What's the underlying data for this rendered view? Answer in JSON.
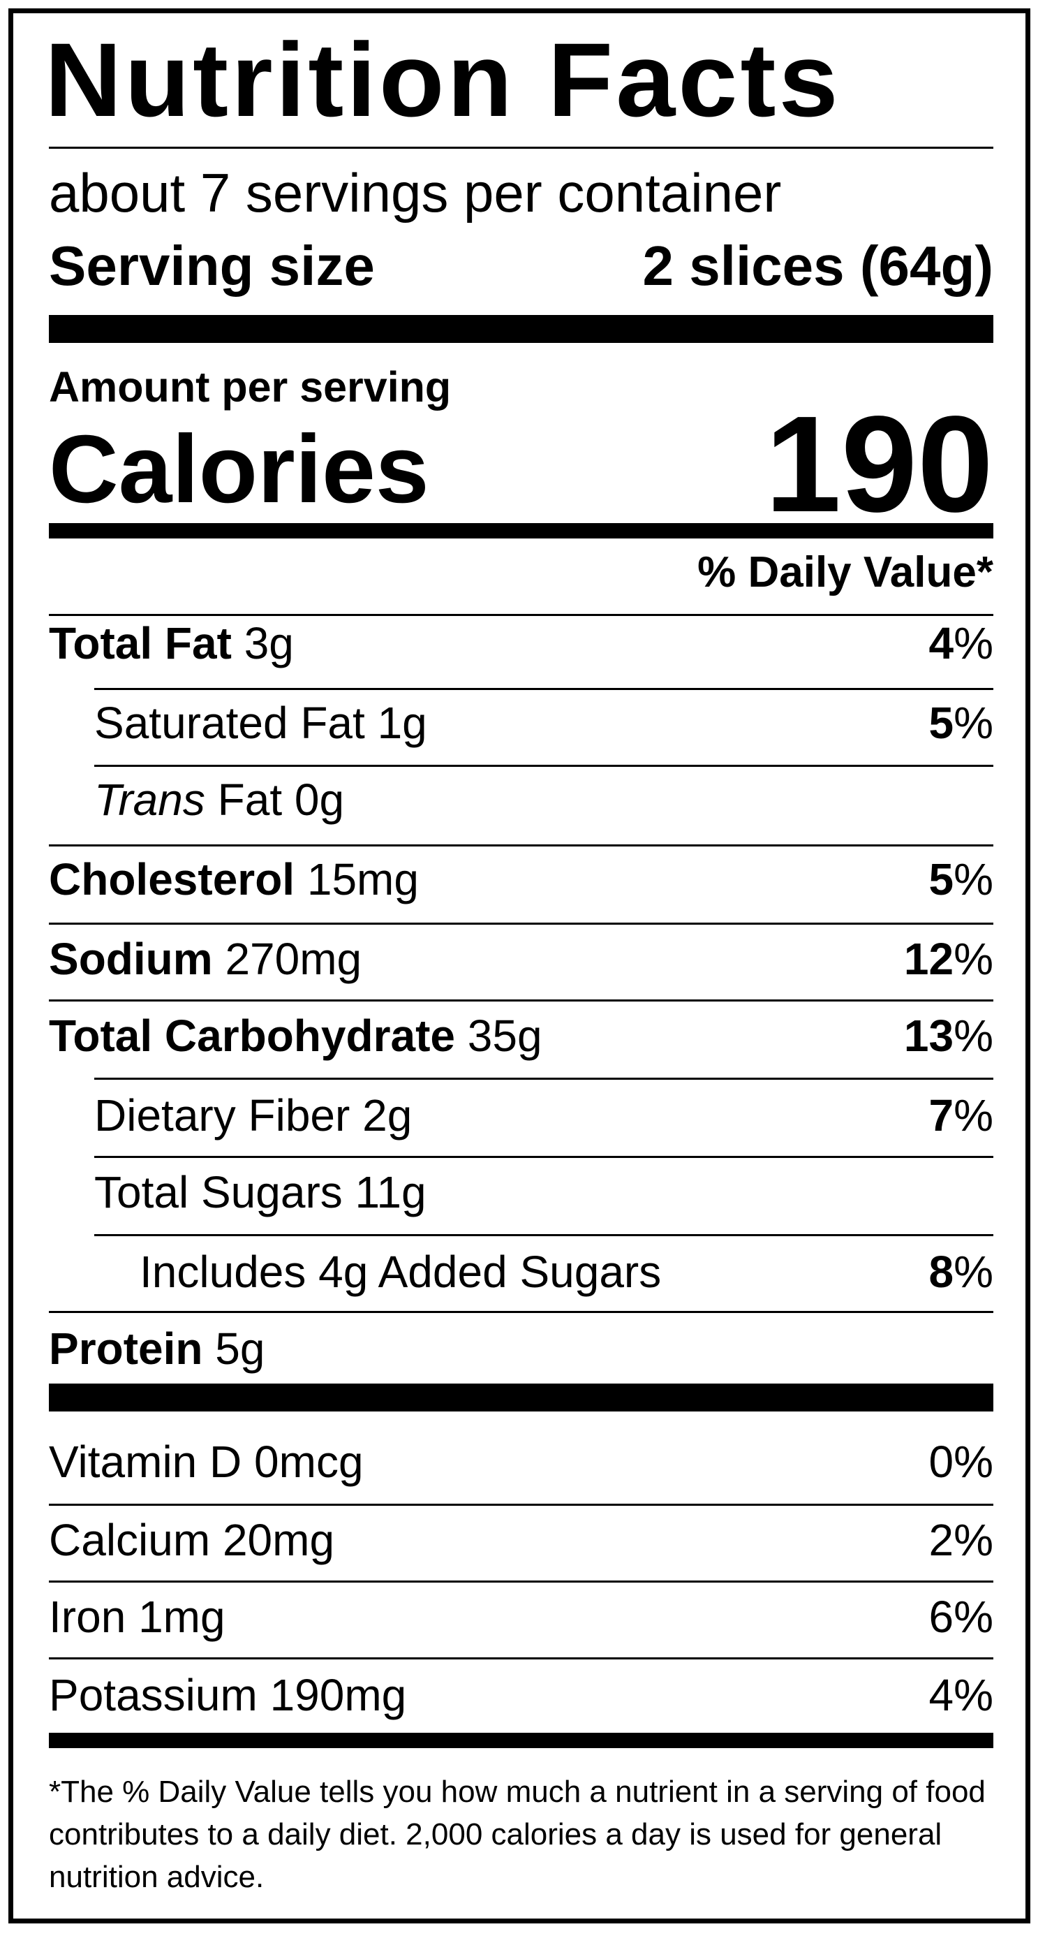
{
  "title": "Nutrition Facts",
  "servings_per_container": "about 7 servings per container",
  "serving_size_label": "Serving size",
  "serving_size_value": "2 slices (64g)",
  "amount_per_serving": "Amount per serving",
  "calories_label": "Calories",
  "calories_value": "190",
  "dv_header": "% Daily Value*",
  "nutrients": [
    {
      "name": "Total Fat",
      "amount": "3g",
      "dv": "4",
      "indent": 0
    },
    {
      "name": "Saturated Fat",
      "amount": "1g",
      "dv": "5",
      "indent": 1
    },
    {
      "name": "Trans",
      "name_rest": "Fat",
      "amount": "0g",
      "dv": "",
      "indent": 1
    },
    {
      "name": "Cholesterol",
      "amount": "15mg",
      "dv": "5",
      "indent": 0
    },
    {
      "name": "Sodium",
      "amount": "270mg",
      "dv": "12",
      "indent": 0
    },
    {
      "name": "Total Carbohydrate",
      "amount": "35g",
      "dv": "13",
      "indent": 0
    },
    {
      "name": "Dietary Fiber",
      "amount": "2g",
      "dv": "7",
      "indent": 1
    },
    {
      "name": "Total Sugars",
      "amount": "11g",
      "dv": "",
      "indent": 1
    },
    {
      "name": "Includes 4g Added Sugars",
      "amount": "",
      "dv": "8",
      "indent": 2
    },
    {
      "name": "Protein",
      "amount": "5g",
      "dv": "",
      "indent": 0
    }
  ],
  "vitamins": [
    {
      "name": "Vitamin D",
      "amount": "0mcg",
      "dv": "0%"
    },
    {
      "name": "Calcium",
      "amount": "20mg",
      "dv": "2%"
    },
    {
      "name": "Iron",
      "amount": "1mg",
      "dv": "6%"
    },
    {
      "name": "Potassium",
      "amount": "190mg",
      "dv": "4%"
    }
  ],
  "percent_sign": "%",
  "footnote": "*The % Daily Value tells you how much a nutrient in a serving of food contributes to a daily diet. 2,000 calories a day is used for general nutrition advice."
}
